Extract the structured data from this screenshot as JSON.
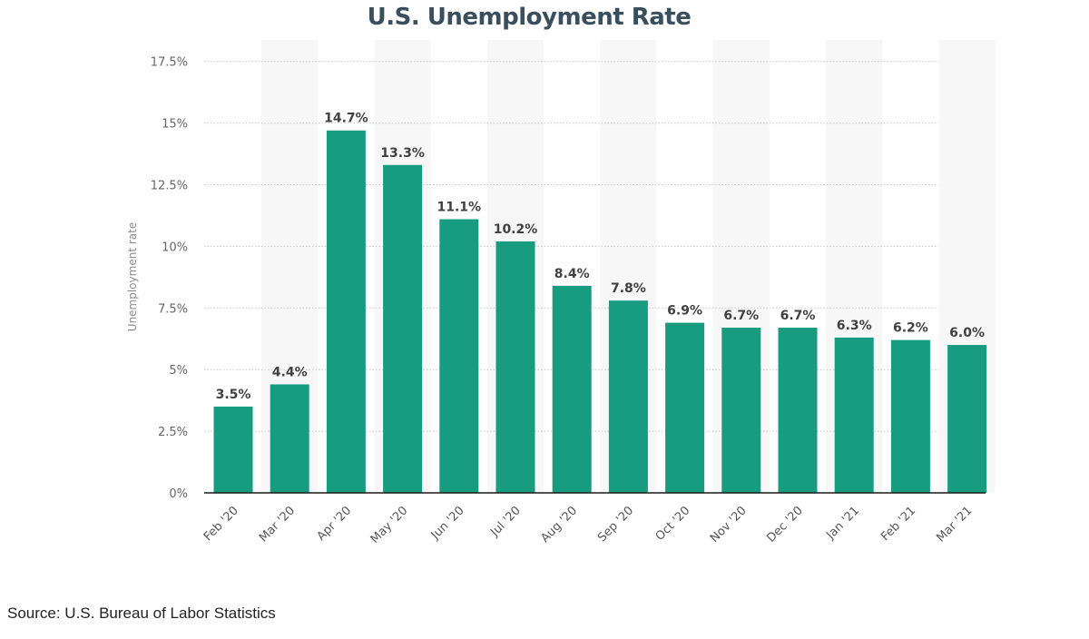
{
  "title": "U.S. Unemployment Rate",
  "source": "Source: U.S. Bureau of Labor Statistics",
  "colors": {
    "bar": "#189c80",
    "title": "#3a4f5e",
    "band": "#f7f7f7",
    "grid": "#c8c8c8",
    "axis": "#1a1a1a"
  },
  "chart_data": {
    "type": "bar",
    "title": "U.S. Unemployment Rate",
    "xlabel": "",
    "ylabel": "Unemployment rate",
    "ylim": [
      0,
      17.5
    ],
    "yticks": [
      "0%",
      "2.5%",
      "5%",
      "7.5%",
      "10%",
      "12.5%",
      "15%",
      "17.5%"
    ],
    "ytick_values": [
      0,
      2.5,
      5,
      7.5,
      10,
      12.5,
      15,
      17.5
    ],
    "grid": true,
    "legend": "none",
    "categories": [
      "Feb '20",
      "Mar '20",
      "Apr '20",
      "May '20",
      "Jun '20",
      "Jul '20",
      "Aug '20",
      "Sep '20",
      "Oct '20",
      "Nov '20",
      "Dec '20",
      "Jan '21",
      "Feb '21",
      "Mar '21"
    ],
    "values": [
      3.5,
      4.4,
      14.7,
      13.3,
      11.1,
      10.2,
      8.4,
      7.8,
      6.9,
      6.7,
      6.7,
      6.3,
      6.2,
      6.0
    ],
    "data_labels": [
      "3.5%",
      "4.4%",
      "14.7%",
      "13.3%",
      "11.1%",
      "10.2%",
      "8.4%",
      "7.8%",
      "6.9%",
      "6.7%",
      "6.7%",
      "6.3%",
      "6.2%",
      "6.0%"
    ]
  }
}
